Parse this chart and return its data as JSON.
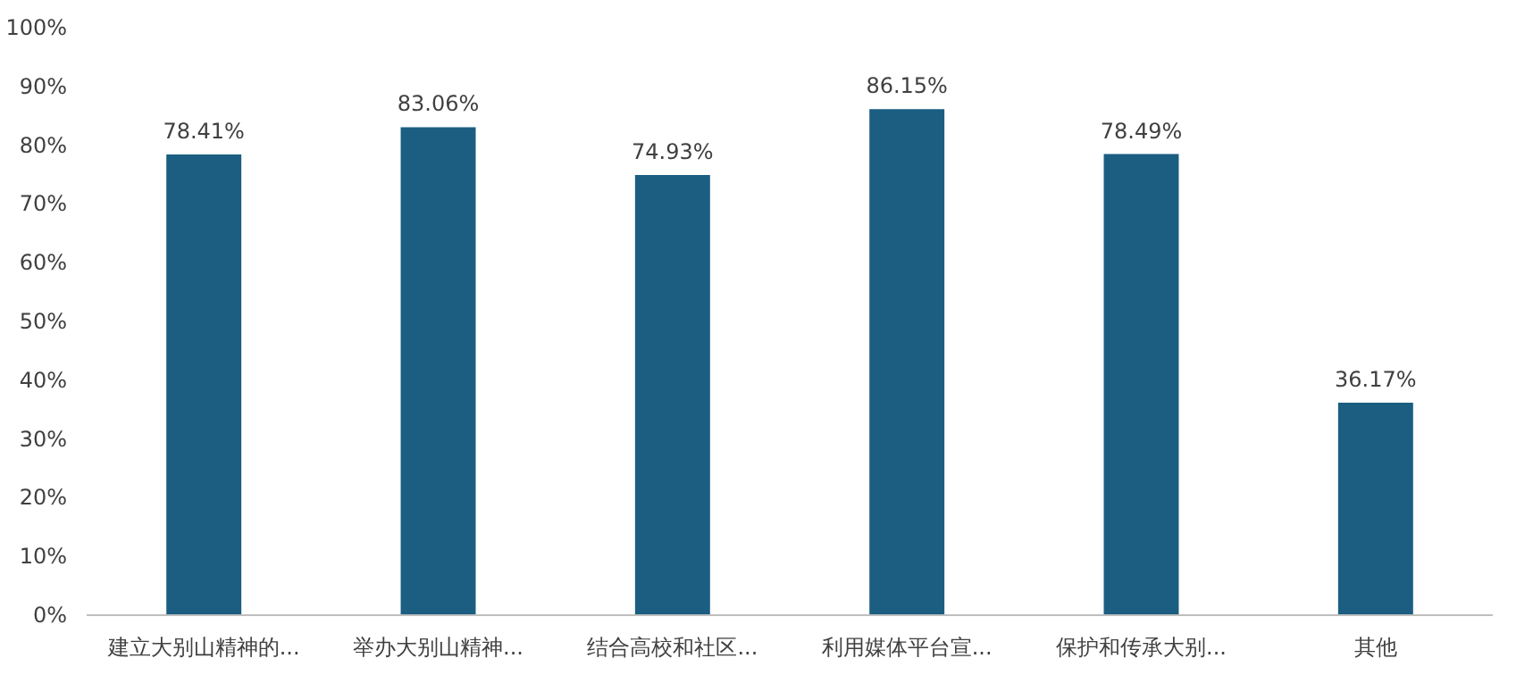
{
  "chart_data": {
    "type": "bar",
    "categories": [
      "建立大别山精神的...",
      "举办大别山精神...",
      "结合高校和社区...",
      "利用媒体平台宣...",
      "保护和传承大别...",
      "其他"
    ],
    "values": [
      78.41,
      83.06,
      74.93,
      86.15,
      78.49,
      36.17
    ],
    "value_labels": [
      "78.41%",
      "83.06%",
      "74.93%",
      "86.15%",
      "78.49%",
      "36.17%"
    ],
    "color": "#1b5e82",
    "ylim": [
      0,
      100
    ],
    "yticks": [
      {
        "value": 0,
        "label": "0%"
      },
      {
        "value": 10,
        "label": "10%"
      },
      {
        "value": 20,
        "label": "20%"
      },
      {
        "value": 30,
        "label": "30%"
      },
      {
        "value": 40,
        "label": "40%"
      },
      {
        "value": 50,
        "label": "50%"
      },
      {
        "value": 60,
        "label": "60%"
      },
      {
        "value": 70,
        "label": "70%"
      },
      {
        "value": 80,
        "label": "80%"
      },
      {
        "value": 90,
        "label": "90%"
      },
      {
        "value": 100,
        "label": "100%"
      }
    ],
    "grid": false
  }
}
